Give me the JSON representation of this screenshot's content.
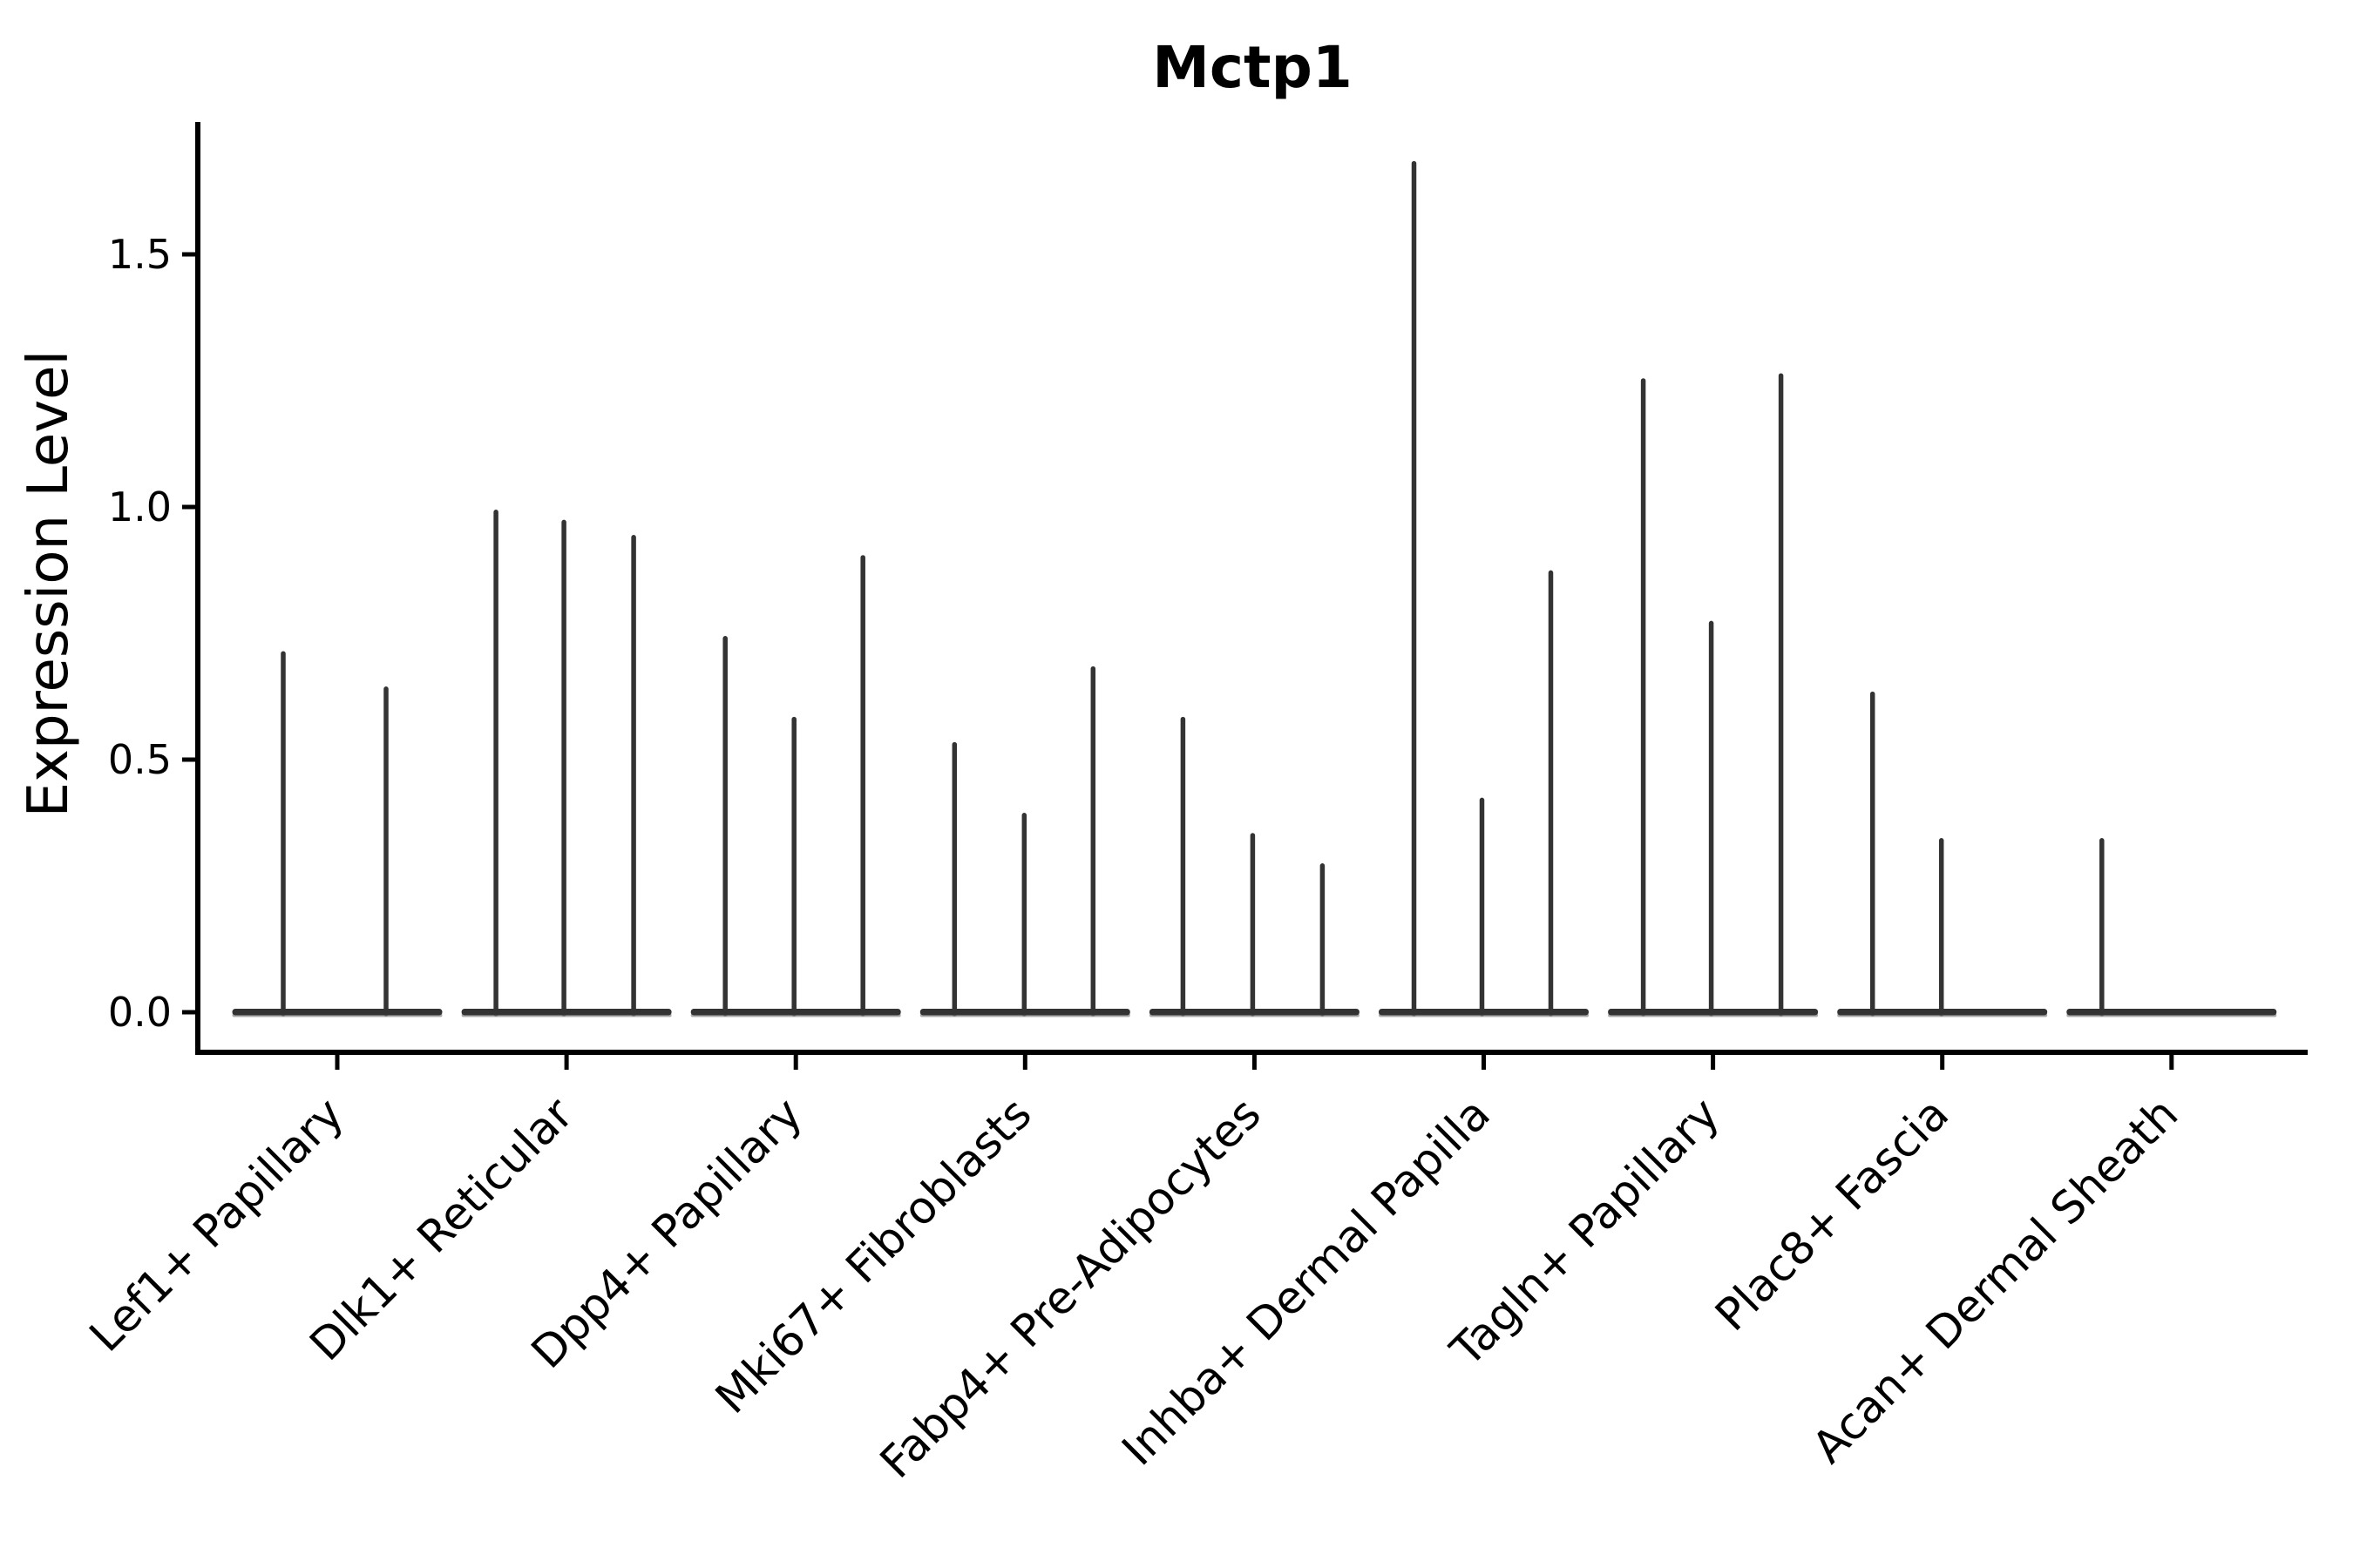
{
  "chart_data": {
    "type": "violin",
    "title": "Mctp1",
    "ylabel": "Expression Level",
    "xlabel": "",
    "grid": false,
    "legend": null,
    "ylim": [
      -0.08,
      1.76
    ],
    "ytick_values": [
      0.0,
      0.5,
      1.0,
      1.5
    ],
    "ytick_labels": [
      "0.0",
      "0.5",
      "1.0",
      "1.5"
    ],
    "categories": [
      "Lef1+ Papillary",
      "Dlk1+ Reticular",
      "Dpp4+ Papillary",
      "Mki67+ Fibroblasts",
      "Fabp4+ Pre-Adipocytes",
      "Inhba+ Dermal Papilla",
      "Tagln+ Papillary",
      "Plac8+ Fascia",
      "Acan+ Dermal Sheath"
    ],
    "series": [
      {
        "category": "Lef1+ Papillary",
        "peaks": [
          0.71,
          0.64
        ],
        "offsets": [
          -62,
          56
        ]
      },
      {
        "category": "Dlk1+ Reticular",
        "peaks": [
          0.99,
          0.97,
          0.94
        ],
        "offsets": [
          -81,
          -3,
          77
        ]
      },
      {
        "category": "Dpp4+ Papillary",
        "peaks": [
          0.74,
          0.58,
          0.9
        ],
        "offsets": [
          -81,
          -2,
          77
        ]
      },
      {
        "category": "Mki67+ Fibroblasts",
        "peaks": [
          0.53,
          0.39,
          0.68
        ],
        "offsets": [
          -81,
          -1,
          78
        ]
      },
      {
        "category": "Fabp4+ Pre-Adipocytes",
        "peaks": [
          0.58,
          0.35,
          0.29
        ],
        "offsets": [
          -82,
          -2,
          78
        ]
      },
      {
        "category": "Inhba+ Dermal Papilla",
        "peaks": [
          1.68,
          0.42,
          0.87
        ],
        "offsets": [
          -80,
          -2,
          77
        ]
      },
      {
        "category": "Tagln+ Papillary",
        "peaks": [
          1.25,
          0.77,
          1.26
        ],
        "offsets": [
          -80,
          -2,
          78
        ]
      },
      {
        "category": "Plac8+ Fascia",
        "peaks": [
          0.63,
          0.34
        ],
        "offsets": [
          -80,
          -1
        ]
      },
      {
        "category": "Acan+ Dermal Sheath",
        "peaks": [
          0.34
        ],
        "offsets": [
          -80
        ]
      }
    ],
    "violin_note": "all violins collapsed at zero baseline with thin density spikes up to peak expression"
  },
  "colors": {
    "ink": "#333333",
    "violin_fill_edge": "#8c8c8c",
    "axis": "#000000",
    "text": "#000000",
    "background": "#ffffff"
  }
}
